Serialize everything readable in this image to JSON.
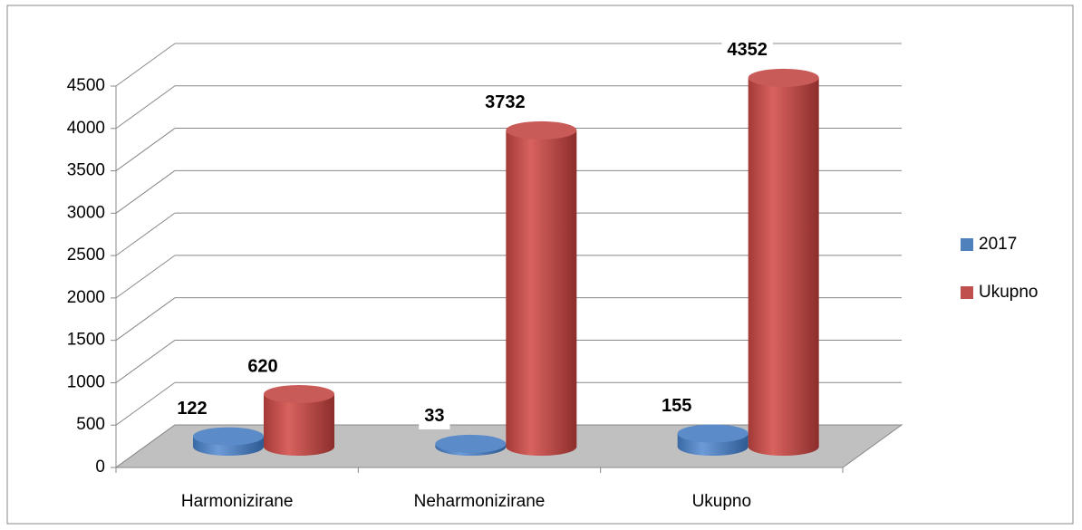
{
  "chart_data": {
    "type": "bar3d",
    "categories": [
      "Harmonizirane",
      "Neharmonizirane",
      "Ukupno"
    ],
    "series": [
      {
        "name": "2017",
        "color": "#4f81bd",
        "values": [
          122,
          33,
          155
        ]
      },
      {
        "name": "Ukupno",
        "color": "#c0504d",
        "values": [
          620,
          3732,
          4352
        ]
      }
    ],
    "ylim": [
      0,
      4500
    ],
    "yticks": [
      0,
      500,
      1000,
      1500,
      2000,
      2500,
      3000,
      3500,
      4000,
      4500
    ],
    "grid": true,
    "legend": "right"
  }
}
